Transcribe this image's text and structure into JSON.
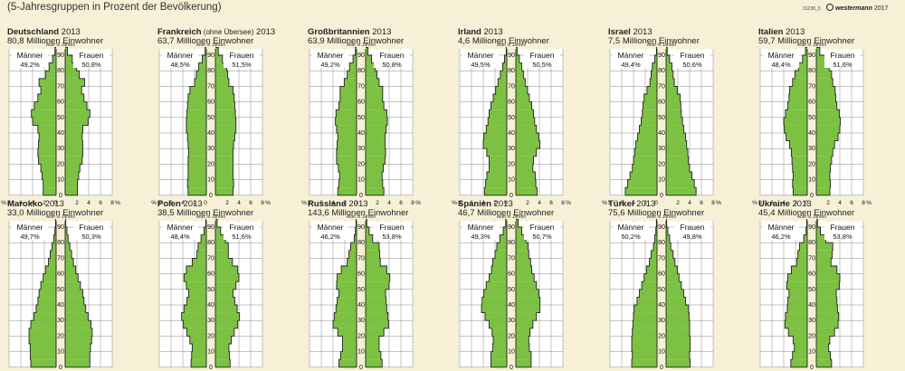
{
  "caption": "(5-Jahresgruppen in Prozent der Bevölkerung)",
  "code": "31238_3",
  "publisher": {
    "name": "westermann",
    "year": "2017"
  },
  "labels": {
    "men": "Männer",
    "women": "Frauen",
    "age_axis": "Alter in Jahren"
  },
  "year": "2013",
  "colors": {
    "fill": "#7cc142",
    "outline": "#222222",
    "grid": "#8a8a8a",
    "panel": "#ffffff",
    "background": "#f6f0d6"
  },
  "chart_data": [
    {
      "type": "bar",
      "country": "Deutschland",
      "qualifier": "",
      "year": "2013",
      "population": "80,8 Millionen Einwohner",
      "men_share": "49,2%",
      "women_share": "50,8%",
      "age_groups": [
        "0",
        "5",
        "10",
        "15",
        "20",
        "25",
        "30",
        "35",
        "40",
        "45",
        "50",
        "55",
        "60",
        "65",
        "70",
        "75",
        "80",
        "85",
        "90"
      ],
      "men": [
        2.2,
        2.2,
        2.4,
        2.6,
        3.0,
        3.1,
        3.0,
        2.9,
        3.1,
        4.0,
        4.2,
        3.7,
        3.1,
        2.6,
        2.9,
        1.8,
        1.2,
        0.6,
        0.2
      ],
      "women": [
        2.1,
        2.1,
        2.3,
        2.5,
        2.9,
        3.0,
        3.0,
        2.9,
        3.0,
        3.9,
        4.2,
        3.7,
        3.2,
        2.8,
        3.3,
        2.4,
        1.9,
        1.2,
        0.4
      ],
      "x_ticks": [
        "%",
        "8",
        "6",
        "4",
        "2",
        "0",
        "2",
        "4",
        "6",
        "8",
        "%"
      ],
      "y_ticks": [
        "0",
        "10",
        "20",
        "30",
        "40",
        "50",
        "60",
        "70",
        "80",
        "90"
      ],
      "xlim": [
        -8,
        8
      ]
    },
    {
      "type": "bar",
      "country": "Frankreich",
      "qualifier": "(ohne Übersee)",
      "year": "2013",
      "population": "63,7 Millionen Einwohner",
      "men_share": "48,5%",
      "women_share": "51,5%",
      "age_groups": [
        "0",
        "5",
        "10",
        "15",
        "20",
        "25",
        "30",
        "35",
        "40",
        "45",
        "50",
        "55",
        "60",
        "65",
        "70",
        "75",
        "80",
        "85",
        "90"
      ],
      "men": [
        3.1,
        3.2,
        3.1,
        3.1,
        3.1,
        3.0,
        3.1,
        3.2,
        3.4,
        3.4,
        3.3,
        3.2,
        3.1,
        2.8,
        2.0,
        1.7,
        1.3,
        0.7,
        0.2
      ],
      "women": [
        3.0,
        3.1,
        3.0,
        3.0,
        3.0,
        3.0,
        3.1,
        3.3,
        3.5,
        3.5,
        3.4,
        3.3,
        3.2,
        3.0,
        2.3,
        2.1,
        1.9,
        1.2,
        0.5
      ],
      "x_ticks": [
        "%",
        "8",
        "6",
        "4",
        "2",
        "0",
        "2",
        "4",
        "6",
        "8",
        "%"
      ],
      "y_ticks": [
        "0",
        "10",
        "20",
        "30",
        "40",
        "50",
        "60",
        "70",
        "80",
        "90"
      ],
      "xlim": [
        -8,
        8
      ]
    },
    {
      "type": "bar",
      "country": "Großbritannien",
      "qualifier": "",
      "year": "2013",
      "population": "63,9 Millionen Einwohner",
      "men_share": "49,2%",
      "women_share": "50,8%",
      "age_groups": [
        "0",
        "5",
        "10",
        "15",
        "20",
        "25",
        "30",
        "35",
        "40",
        "45",
        "50",
        "55",
        "60",
        "65",
        "70",
        "75",
        "80",
        "85",
        "90"
      ],
      "men": [
        3.2,
        3.0,
        2.9,
        3.1,
        3.4,
        3.4,
        3.3,
        3.2,
        3.4,
        3.6,
        3.5,
        3.0,
        2.8,
        2.8,
        2.1,
        1.6,
        1.2,
        0.6,
        0.2
      ],
      "women": [
        3.1,
        2.9,
        2.8,
        3.0,
        3.3,
        3.4,
        3.3,
        3.3,
        3.5,
        3.7,
        3.6,
        3.1,
        2.9,
        2.9,
        2.3,
        1.9,
        1.6,
        1.0,
        0.4
      ],
      "x_ticks": [
        "%",
        "8",
        "6",
        "4",
        "2",
        "0",
        "2",
        "4",
        "6",
        "8",
        "%"
      ],
      "y_ticks": [
        "0",
        "10",
        "20",
        "30",
        "40",
        "50",
        "60",
        "70",
        "80",
        "90"
      ],
      "xlim": [
        -8,
        8
      ]
    },
    {
      "type": "bar",
      "country": "Irland",
      "qualifier": "",
      "year": "2013",
      "population": "4,6 Millionen Einwohner",
      "men_share": "49,5%",
      "women_share": "50,5%",
      "age_groups": [
        "0",
        "5",
        "10",
        "15",
        "20",
        "25",
        "30",
        "35",
        "40",
        "45",
        "50",
        "55",
        "60",
        "65",
        "70",
        "75",
        "80",
        "85",
        "90"
      ],
      "men": [
        3.8,
        3.6,
        3.4,
        3.0,
        3.0,
        3.4,
        4.0,
        3.9,
        3.5,
        3.2,
        3.0,
        2.7,
        2.3,
        1.9,
        1.5,
        1.1,
        0.7,
        0.4,
        0.1
      ],
      "women": [
        3.6,
        3.4,
        3.3,
        2.9,
        3.0,
        3.5,
        4.1,
        3.9,
        3.5,
        3.2,
        3.0,
        2.7,
        2.3,
        2.0,
        1.6,
        1.3,
        1.0,
        0.6,
        0.2
      ],
      "x_ticks": [
        "%",
        "8",
        "6",
        "4",
        "2",
        "0",
        "2",
        "4",
        "6",
        "8",
        "%"
      ],
      "y_ticks": [
        "0",
        "10",
        "20",
        "30",
        "40",
        "50",
        "60",
        "70",
        "80",
        "90"
      ],
      "xlim": [
        -8,
        8
      ]
    },
    {
      "type": "bar",
      "country": "Israel",
      "qualifier": "",
      "year": "2013",
      "population": "7,5 Millionen Einwohner",
      "men_share": "49,4%",
      "women_share": "50,6%",
      "age_groups": [
        "0",
        "5",
        "10",
        "15",
        "20",
        "25",
        "30",
        "35",
        "40",
        "45",
        "50",
        "55",
        "60",
        "65",
        "70",
        "75",
        "80",
        "85",
        "90"
      ],
      "men": [
        5.4,
        5.0,
        4.6,
        4.2,
        4.0,
        3.8,
        3.6,
        3.3,
        3.0,
        2.7,
        2.5,
        2.4,
        2.2,
        1.7,
        1.2,
        1.0,
        0.8,
        0.4,
        0.1
      ],
      "women": [
        5.1,
        4.8,
        4.4,
        4.0,
        3.8,
        3.7,
        3.5,
        3.3,
        3.0,
        2.8,
        2.6,
        2.5,
        2.4,
        1.9,
        1.4,
        1.2,
        1.0,
        0.6,
        0.2
      ],
      "x_ticks": [
        "%",
        "8",
        "6",
        "4",
        "2",
        "0",
        "2",
        "4",
        "6",
        "8",
        "%"
      ],
      "y_ticks": [
        "0",
        "10",
        "20",
        "30",
        "40",
        "50",
        "60",
        "70",
        "80",
        "90"
      ],
      "xlim": [
        -8,
        8
      ]
    },
    {
      "type": "bar",
      "country": "Italien",
      "qualifier": "",
      "year": "2013",
      "population": "59,7 Millionen Einwohner",
      "men_share": "48,4%",
      "women_share": "51,6%",
      "age_groups": [
        "0",
        "5",
        "10",
        "15",
        "20",
        "25",
        "30",
        "35",
        "40",
        "45",
        "50",
        "55",
        "60",
        "65",
        "70",
        "75",
        "80",
        "85",
        "90"
      ],
      "men": [
        2.4,
        2.5,
        2.4,
        2.5,
        2.6,
        2.7,
        3.0,
        3.6,
        3.9,
        4.0,
        3.7,
        3.3,
        3.1,
        3.0,
        2.5,
        2.1,
        1.5,
        0.8,
        0.3
      ],
      "women": [
        2.3,
        2.4,
        2.3,
        2.4,
        2.6,
        2.8,
        3.1,
        3.7,
        4.0,
        4.1,
        3.9,
        3.5,
        3.3,
        3.2,
        2.8,
        2.6,
        2.2,
        1.5,
        0.6
      ],
      "x_ticks": [
        "%",
        "8",
        "6",
        "4",
        "2",
        "0",
        "2",
        "4",
        "6",
        "8",
        "%"
      ],
      "y_ticks": [
        "0",
        "10",
        "20",
        "30",
        "40",
        "50",
        "60",
        "70",
        "80",
        "90"
      ],
      "xlim": [
        -8,
        8
      ]
    },
    {
      "type": "bar",
      "country": "Marokko",
      "qualifier": "",
      "year": "2013",
      "population": "33,0 Millionen Einwohner",
      "men_share": "49,7%",
      "women_share": "50,3%",
      "age_groups": [
        "0",
        "5",
        "10",
        "15",
        "20",
        "25",
        "30",
        "35",
        "40",
        "45",
        "50",
        "55",
        "60",
        "65",
        "70",
        "75",
        "80",
        "85",
        "90"
      ],
      "men": [
        4.3,
        4.4,
        4.4,
        4.6,
        4.6,
        4.3,
        3.8,
        3.4,
        3.1,
        2.9,
        2.6,
        2.2,
        1.8,
        1.3,
        1.0,
        0.7,
        0.4,
        0.2,
        0.1
      ],
      "women": [
        4.2,
        4.2,
        4.3,
        4.5,
        4.6,
        4.4,
        3.9,
        3.5,
        3.2,
        3.0,
        2.6,
        2.2,
        1.8,
        1.4,
        1.1,
        0.8,
        0.5,
        0.3,
        0.1
      ],
      "x_ticks": [
        "%",
        "8",
        "6",
        "4",
        "2",
        "0",
        "2",
        "4",
        "6",
        "8",
        "%"
      ],
      "y_ticks": [
        "0",
        "10",
        "20",
        "30",
        "40",
        "50",
        "60",
        "70",
        "80",
        "90"
      ],
      "xlim": [
        -8,
        8
      ]
    },
    {
      "type": "bar",
      "country": "Polen",
      "qualifier": "",
      "year": "2013",
      "population": "38,5 Millionen Einwohner",
      "men_share": "48,4%",
      "women_share": "51,6%",
      "age_groups": [
        "0",
        "5",
        "10",
        "15",
        "20",
        "25",
        "30",
        "35",
        "40",
        "45",
        "50",
        "55",
        "60",
        "65",
        "70",
        "75",
        "80",
        "85",
        "90"
      ],
      "men": [
        2.6,
        2.5,
        2.4,
        2.8,
        3.3,
        3.9,
        4.2,
        3.8,
        3.3,
        3.0,
        3.4,
        3.8,
        3.4,
        2.4,
        1.6,
        1.4,
        0.9,
        0.4,
        0.1
      ],
      "women": [
        2.5,
        2.4,
        2.3,
        2.7,
        3.2,
        3.8,
        4.1,
        3.7,
        3.3,
        3.0,
        3.5,
        4.0,
        3.8,
        2.9,
        2.2,
        2.2,
        1.7,
        0.9,
        0.3
      ],
      "x_ticks": [
        "%",
        "8",
        "6",
        "4",
        "2",
        "0",
        "2",
        "4",
        "6",
        "8",
        "%"
      ],
      "y_ticks": [
        "0",
        "10",
        "20",
        "30",
        "40",
        "50",
        "60",
        "70",
        "80",
        "90"
      ],
      "xlim": [
        -8,
        8
      ]
    },
    {
      "type": "bar",
      "country": "Russland",
      "qualifier": "",
      "year": "2013",
      "population": "143,6 Millionen Einwohner",
      "men_share": "46,2%",
      "women_share": "53,8%",
      "age_groups": [
        "0",
        "5",
        "10",
        "15",
        "20",
        "25",
        "30",
        "35",
        "40",
        "45",
        "50",
        "55",
        "60",
        "65",
        "70",
        "75",
        "80",
        "85",
        "90"
      ],
      "men": [
        3.0,
        2.7,
        2.4,
        2.4,
        3.2,
        4.0,
        3.8,
        3.5,
        3.3,
        3.0,
        3.4,
        3.3,
        2.6,
        1.6,
        1.3,
        1.0,
        0.4,
        0.2,
        0.1
      ],
      "women": [
        2.8,
        2.6,
        2.3,
        2.3,
        3.1,
        3.9,
        3.8,
        3.6,
        3.5,
        3.4,
        4.0,
        4.1,
        3.6,
        2.5,
        2.4,
        2.3,
        1.2,
        0.6,
        0.2
      ],
      "x_ticks": [
        "%",
        "8",
        "6",
        "4",
        "2",
        "0",
        "2",
        "4",
        "6",
        "8",
        "%"
      ],
      "y_ticks": [
        "0",
        "10",
        "20",
        "30",
        "40",
        "50",
        "60",
        "70",
        "80",
        "90"
      ],
      "xlim": [
        -8,
        8
      ]
    },
    {
      "type": "bar",
      "country": "Spanien",
      "qualifier": "",
      "year": "2013",
      "population": "46,7 Millionen Einwohner",
      "men_share": "49,3%",
      "women_share": "50,7%",
      "age_groups": [
        "0",
        "5",
        "10",
        "15",
        "20",
        "25",
        "30",
        "35",
        "40",
        "45",
        "50",
        "55",
        "60",
        "65",
        "70",
        "75",
        "80",
        "85",
        "90"
      ],
      "men": [
        2.7,
        2.7,
        2.4,
        2.3,
        2.5,
        3.0,
        3.7,
        4.3,
        4.2,
        3.9,
        3.5,
        3.0,
        2.6,
        2.4,
        2.0,
        1.7,
        1.2,
        0.6,
        0.2
      ],
      "women": [
        2.6,
        2.6,
        2.3,
        2.2,
        2.4,
        2.9,
        3.5,
        4.1,
        4.1,
        3.9,
        3.5,
        3.1,
        2.7,
        2.5,
        2.2,
        2.1,
        1.7,
        1.0,
        0.4
      ],
      "x_ticks": [
        "%",
        "8",
        "6",
        "4",
        "2",
        "0",
        "2",
        "4",
        "6",
        "8",
        "%"
      ],
      "y_ticks": [
        "0",
        "10",
        "20",
        "30",
        "40",
        "50",
        "60",
        "70",
        "80",
        "90"
      ],
      "xlim": [
        -8,
        8
      ]
    },
    {
      "type": "bar",
      "country": "Türkei",
      "qualifier": "",
      "year": "2013",
      "population": "75,6 Millionen Einwohner",
      "men_share": "50,2%",
      "women_share": "49,8%",
      "age_groups": [
        "0",
        "5",
        "10",
        "15",
        "20",
        "25",
        "30",
        "35",
        "40",
        "45",
        "50",
        "55",
        "60",
        "65",
        "70",
        "75",
        "80",
        "85",
        "90"
      ],
      "men": [
        4.3,
        4.2,
        4.3,
        4.3,
        4.2,
        4.1,
        4.0,
        3.9,
        3.4,
        3.0,
        2.6,
        2.2,
        1.8,
        1.3,
        1.0,
        0.6,
        0.4,
        0.2,
        0.1
      ],
      "women": [
        4.1,
        4.0,
        4.1,
        4.1,
        4.0,
        4.0,
        3.9,
        3.8,
        3.3,
        3.0,
        2.6,
        2.2,
        1.9,
        1.5,
        1.2,
        0.8,
        0.6,
        0.3,
        0.1
      ],
      "x_ticks": [
        "%",
        "8",
        "6",
        "4",
        "2",
        "0",
        "2",
        "4",
        "6",
        "8",
        "%"
      ],
      "y_ticks": [
        "0",
        "10",
        "20",
        "30",
        "40",
        "50",
        "60",
        "70",
        "80",
        "90"
      ],
      "xlim": [
        -8,
        8
      ]
    },
    {
      "type": "bar",
      "country": "Ukraine",
      "qualifier": "",
      "year": "2013",
      "population": "45,4 Millionen Einwohner",
      "men_share": "46,2%",
      "women_share": "53,8%",
      "age_groups": [
        "0",
        "5",
        "10",
        "15",
        "20",
        "25",
        "30",
        "35",
        "40",
        "45",
        "50",
        "55",
        "60",
        "65",
        "70",
        "75",
        "80",
        "85",
        "90"
      ],
      "men": [
        2.8,
        2.5,
        2.2,
        2.4,
        3.2,
        3.8,
        3.7,
        3.4,
        3.3,
        3.1,
        3.5,
        3.3,
        2.7,
        1.8,
        1.6,
        1.3,
        0.6,
        0.2,
        0.1
      ],
      "women": [
        2.6,
        2.4,
        2.1,
        2.3,
        3.1,
        3.7,
        3.8,
        3.6,
        3.5,
        3.4,
        3.9,
        4.0,
        3.5,
        2.5,
        2.7,
        2.8,
        1.6,
        0.7,
        0.2
      ],
      "x_ticks": [
        "%",
        "8",
        "6",
        "4",
        "2",
        "0",
        "2",
        "4",
        "6",
        "8",
        "%"
      ],
      "y_ticks": [
        "0",
        "10",
        "20",
        "30",
        "40",
        "50",
        "60",
        "70",
        "80",
        "90"
      ],
      "xlim": [
        -8,
        8
      ]
    }
  ]
}
